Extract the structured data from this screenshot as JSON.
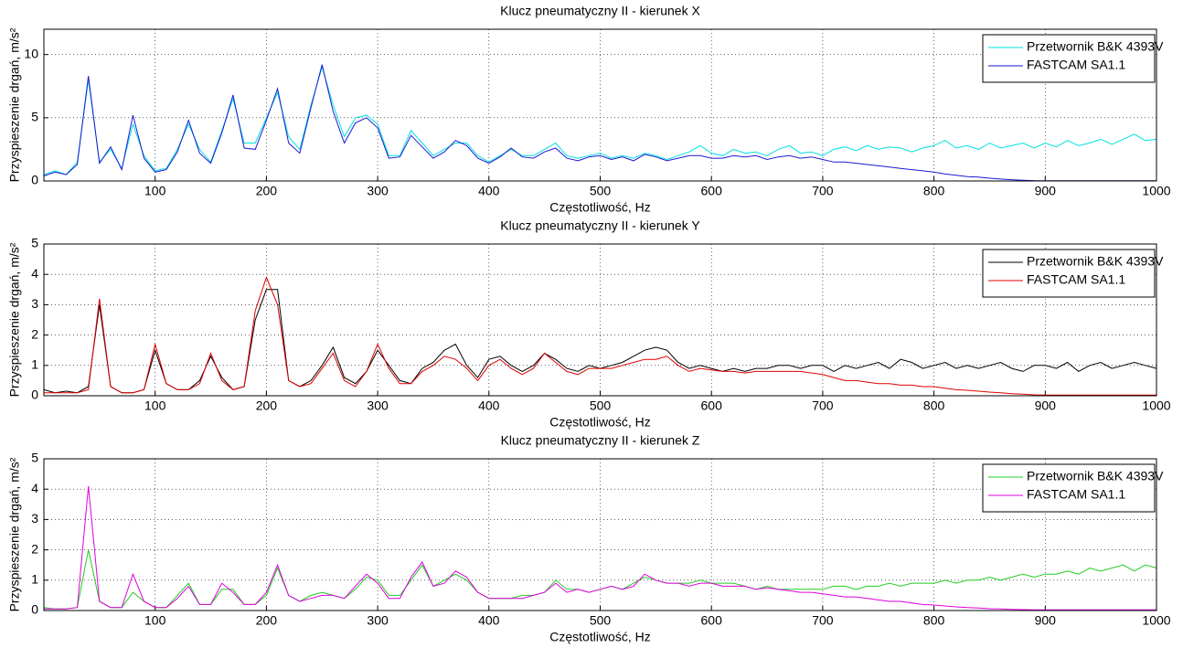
{
  "chart_data": [
    {
      "type": "line",
      "title": "Klucz pneumatyczny II - kierunek X",
      "xlabel": "Częstotliwość, Hz",
      "ylabel": "Przyspieszenie drgań, m/s²",
      "x": [
        0,
        10,
        20,
        30,
        40,
        50,
        60,
        70,
        80,
        90,
        100,
        110,
        120,
        130,
        140,
        150,
        160,
        170,
        180,
        190,
        200,
        210,
        220,
        230,
        240,
        250,
        260,
        270,
        280,
        290,
        300,
        310,
        320,
        330,
        340,
        350,
        360,
        370,
        380,
        390,
        400,
        410,
        420,
        430,
        440,
        450,
        460,
        470,
        480,
        490,
        500,
        510,
        520,
        530,
        540,
        550,
        560,
        570,
        580,
        590,
        600,
        610,
        620,
        630,
        640,
        650,
        660,
        670,
        680,
        690,
        700,
        710,
        720,
        730,
        740,
        750,
        760,
        770,
        780,
        790,
        800,
        810,
        820,
        830,
        840,
        850,
        860,
        870,
        880,
        890,
        900,
        910,
        920,
        930,
        940,
        950,
        960,
        970,
        980,
        990,
        1000
      ],
      "series": [
        {
          "name": "Przetwornik B&K 4393V",
          "color": "#00e0e0",
          "values": [
            0.5,
            0.8,
            0.5,
            1.5,
            8.0,
            1.5,
            2.5,
            1.0,
            4.5,
            2.0,
            0.8,
            1.0,
            2.5,
            4.5,
            2.5,
            1.5,
            4.0,
            6.5,
            3.0,
            3.0,
            5.0,
            7.0,
            3.5,
            2.5,
            6.0,
            9.0,
            6.0,
            3.5,
            5.0,
            5.2,
            4.5,
            2.0,
            2.0,
            4.0,
            3.0,
            2.0,
            2.5,
            3.0,
            3.0,
            2.0,
            1.5,
            2.0,
            2.5,
            2.0,
            2.0,
            2.5,
            3.0,
            2.0,
            1.8,
            2.0,
            2.2,
            1.8,
            2.0,
            1.8,
            2.2,
            2.0,
            1.7,
            2.0,
            2.3,
            2.8,
            2.2,
            2.0,
            2.5,
            2.2,
            2.3,
            2.0,
            2.5,
            2.8,
            2.2,
            2.3,
            2.0,
            2.5,
            2.7,
            2.4,
            2.8,
            2.5,
            2.7,
            2.6,
            2.3,
            2.6,
            2.8,
            3.2,
            2.6,
            2.8,
            2.5,
            3.0,
            2.6,
            2.8,
            3.0,
            2.6,
            3.0,
            2.7,
            3.2,
            2.8,
            3.0,
            3.3,
            2.9,
            3.3,
            3.7,
            3.2,
            3.3
          ]
        },
        {
          "name": "FASTCAM SA1.1",
          "color": "#1a1ad4",
          "values": [
            0.4,
            0.7,
            0.5,
            1.3,
            8.3,
            1.4,
            2.7,
            0.9,
            5.2,
            1.8,
            0.7,
            0.9,
            2.3,
            4.8,
            2.2,
            1.4,
            3.8,
            6.8,
            2.6,
            2.5,
            4.8,
            7.3,
            3.0,
            2.2,
            5.8,
            9.2,
            5.5,
            3.0,
            4.6,
            5.0,
            4.2,
            1.8,
            1.9,
            3.6,
            2.7,
            1.8,
            2.3,
            3.2,
            2.8,
            1.8,
            1.4,
            1.9,
            2.6,
            1.9,
            1.8,
            2.3,
            2.6,
            1.8,
            1.6,
            1.9,
            2.0,
            1.7,
            1.9,
            1.6,
            2.1,
            1.9,
            1.6,
            1.8,
            2.0,
            2.0,
            1.8,
            1.8,
            2.0,
            1.9,
            2.0,
            1.7,
            1.9,
            2.0,
            1.8,
            1.9,
            1.7,
            1.5,
            1.5,
            1.4,
            1.3,
            1.2,
            1.1,
            1.0,
            0.9,
            0.8,
            0.7,
            0.55,
            0.45,
            0.35,
            0.3,
            0.22,
            0.15,
            0.1,
            0.06,
            0.03,
            0.02,
            0.02,
            0.02,
            0.02,
            0.02,
            0.02,
            0.02,
            0.02,
            0.02,
            0.02,
            0.02
          ]
        }
      ],
      "xlim": [
        0,
        1000
      ],
      "xticks": [
        100,
        200,
        300,
        400,
        500,
        600,
        700,
        800,
        900,
        1000
      ],
      "ylim": [
        0,
        12
      ],
      "yticks": [
        0,
        5,
        10
      ],
      "grid": true,
      "legend": "upper right"
    },
    {
      "type": "line",
      "title": "Klucz pneumatyczny II - kierunek Y",
      "xlabel": "Częstotliwość, Hz",
      "ylabel": "Przyspieszenie drgań, m/s²",
      "x": [
        0,
        10,
        20,
        30,
        40,
        50,
        60,
        70,
        80,
        90,
        100,
        110,
        120,
        130,
        140,
        150,
        160,
        170,
        180,
        190,
        200,
        210,
        220,
        230,
        240,
        250,
        260,
        270,
        280,
        290,
        300,
        310,
        320,
        330,
        340,
        350,
        360,
        370,
        380,
        390,
        400,
        410,
        420,
        430,
        440,
        450,
        460,
        470,
        480,
        490,
        500,
        510,
        520,
        530,
        540,
        550,
        560,
        570,
        580,
        590,
        600,
        610,
        620,
        630,
        640,
        650,
        660,
        670,
        680,
        690,
        700,
        710,
        720,
        730,
        740,
        750,
        760,
        770,
        780,
        790,
        800,
        810,
        820,
        830,
        840,
        850,
        860,
        870,
        880,
        890,
        900,
        910,
        920,
        930,
        940,
        950,
        960,
        970,
        980,
        990,
        1000
      ],
      "series": [
        {
          "name": "Przetwornik B&K 4393V",
          "color": "#000000",
          "values": [
            0.2,
            0.1,
            0.15,
            0.1,
            0.3,
            3.0,
            0.3,
            0.1,
            0.1,
            0.2,
            1.5,
            0.4,
            0.2,
            0.2,
            0.5,
            1.3,
            0.6,
            0.2,
            0.3,
            2.5,
            3.5,
            3.5,
            0.5,
            0.3,
            0.5,
            1.0,
            1.6,
            0.6,
            0.4,
            0.8,
            1.5,
            1.0,
            0.5,
            0.4,
            0.9,
            1.1,
            1.5,
            1.7,
            1.0,
            0.6,
            1.2,
            1.3,
            1.0,
            0.8,
            1.0,
            1.4,
            1.2,
            0.9,
            0.8,
            1.0,
            0.9,
            1.0,
            1.1,
            1.3,
            1.5,
            1.6,
            1.5,
            1.1,
            0.9,
            1.0,
            0.9,
            0.8,
            0.9,
            0.8,
            0.9,
            0.9,
            1.0,
            1.0,
            0.9,
            1.0,
            1.0,
            0.8,
            1.0,
            0.9,
            1.0,
            1.1,
            0.9,
            1.2,
            1.1,
            0.9,
            1.0,
            1.1,
            0.9,
            1.0,
            0.9,
            1.0,
            1.1,
            0.9,
            0.8,
            1.0,
            1.0,
            0.9,
            1.1,
            0.8,
            1.0,
            1.1,
            0.9,
            1.0,
            1.1,
            1.0,
            0.9
          ]
        },
        {
          "name": "FASTCAM SA1.1",
          "color": "#e00000",
          "values": [
            0.1,
            0.1,
            0.1,
            0.1,
            0.2,
            3.2,
            0.3,
            0.1,
            0.1,
            0.2,
            1.7,
            0.4,
            0.2,
            0.2,
            0.4,
            1.4,
            0.5,
            0.2,
            0.3,
            2.8,
            3.9,
            3.0,
            0.5,
            0.3,
            0.4,
            0.9,
            1.4,
            0.5,
            0.3,
            0.8,
            1.7,
            0.9,
            0.4,
            0.4,
            0.8,
            1.0,
            1.3,
            1.2,
            0.9,
            0.5,
            1.0,
            1.2,
            0.9,
            0.7,
            0.9,
            1.4,
            1.1,
            0.8,
            0.7,
            0.9,
            0.9,
            0.9,
            1.0,
            1.1,
            1.2,
            1.2,
            1.3,
            1.0,
            0.8,
            0.9,
            0.85,
            0.8,
            0.8,
            0.75,
            0.8,
            0.8,
            0.8,
            0.8,
            0.8,
            0.75,
            0.7,
            0.6,
            0.5,
            0.5,
            0.45,
            0.4,
            0.4,
            0.35,
            0.35,
            0.3,
            0.3,
            0.25,
            0.2,
            0.18,
            0.15,
            0.12,
            0.1,
            0.07,
            0.05,
            0.03,
            0.02,
            0.02,
            0.02,
            0.02,
            0.02,
            0.02,
            0.02,
            0.02,
            0.02,
            0.02,
            0.02
          ]
        }
      ],
      "xlim": [
        0,
        1000
      ],
      "xticks": [
        100,
        200,
        300,
        400,
        500,
        600,
        700,
        800,
        900,
        1000
      ],
      "ylim": [
        0,
        5
      ],
      "yticks": [
        0,
        1,
        2,
        3,
        4,
        5
      ],
      "grid": true,
      "legend": "upper right"
    },
    {
      "type": "line",
      "title": "Klucz pneumatyczny II - kierunek Z",
      "xlabel": "Częstotliwość, Hz",
      "ylabel": "Przyspieszenie drgań, m/s²",
      "x": [
        0,
        10,
        20,
        30,
        40,
        50,
        60,
        70,
        80,
        90,
        100,
        110,
        120,
        130,
        140,
        150,
        160,
        170,
        180,
        190,
        200,
        210,
        220,
        230,
        240,
        250,
        260,
        270,
        280,
        290,
        300,
        310,
        320,
        330,
        340,
        350,
        360,
        370,
        380,
        390,
        400,
        410,
        420,
        430,
        440,
        450,
        460,
        470,
        480,
        490,
        500,
        510,
        520,
        530,
        540,
        550,
        560,
        570,
        580,
        590,
        600,
        610,
        620,
        630,
        640,
        650,
        660,
        670,
        680,
        690,
        700,
        710,
        720,
        730,
        740,
        750,
        760,
        770,
        780,
        790,
        800,
        810,
        820,
        830,
        840,
        850,
        860,
        870,
        880,
        890,
        900,
        910,
        920,
        930,
        940,
        950,
        960,
        970,
        980,
        990,
        1000
      ],
      "series": [
        {
          "name": "Przetwornik B&K 4393V",
          "color": "#22cc22",
          "values": [
            0.1,
            0.05,
            0.05,
            0.1,
            2.0,
            0.3,
            0.1,
            0.1,
            0.6,
            0.3,
            0.1,
            0.1,
            0.5,
            0.9,
            0.2,
            0.2,
            0.7,
            0.7,
            0.2,
            0.2,
            0.5,
            1.4,
            0.5,
            0.3,
            0.5,
            0.6,
            0.5,
            0.4,
            0.7,
            1.1,
            1.0,
            0.5,
            0.5,
            1.0,
            1.5,
            0.8,
            1.0,
            1.2,
            1.0,
            0.6,
            0.4,
            0.4,
            0.4,
            0.5,
            0.5,
            0.6,
            1.0,
            0.7,
            0.7,
            0.6,
            0.7,
            0.8,
            0.7,
            0.9,
            1.1,
            1.0,
            0.9,
            0.9,
            0.9,
            1.0,
            0.9,
            0.9,
            0.9,
            0.8,
            0.7,
            0.8,
            0.7,
            0.7,
            0.7,
            0.7,
            0.7,
            0.8,
            0.8,
            0.7,
            0.8,
            0.8,
            0.9,
            0.8,
            0.9,
            0.9,
            0.9,
            1.0,
            0.9,
            1.0,
            1.0,
            1.1,
            1.0,
            1.1,
            1.2,
            1.1,
            1.2,
            1.2,
            1.3,
            1.2,
            1.4,
            1.3,
            1.4,
            1.5,
            1.3,
            1.5,
            1.4
          ]
        },
        {
          "name": "FASTCAM SA1.1",
          "color": "#e000e0",
          "values": [
            0.05,
            0.05,
            0.05,
            0.1,
            4.1,
            0.3,
            0.1,
            0.1,
            1.2,
            0.3,
            0.1,
            0.1,
            0.4,
            0.8,
            0.2,
            0.2,
            0.9,
            0.6,
            0.2,
            0.2,
            0.6,
            1.5,
            0.5,
            0.3,
            0.4,
            0.5,
            0.5,
            0.4,
            0.8,
            1.2,
            0.9,
            0.4,
            0.4,
            1.1,
            1.6,
            0.8,
            0.9,
            1.3,
            1.1,
            0.6,
            0.4,
            0.4,
            0.4,
            0.4,
            0.5,
            0.6,
            0.9,
            0.6,
            0.7,
            0.6,
            0.7,
            0.8,
            0.7,
            0.8,
            1.2,
            1.0,
            0.9,
            0.9,
            0.8,
            0.9,
            0.9,
            0.8,
            0.8,
            0.8,
            0.7,
            0.75,
            0.7,
            0.65,
            0.6,
            0.6,
            0.55,
            0.5,
            0.45,
            0.45,
            0.4,
            0.35,
            0.3,
            0.3,
            0.25,
            0.2,
            0.18,
            0.15,
            0.12,
            0.1,
            0.08,
            0.06,
            0.05,
            0.04,
            0.03,
            0.02,
            0.02,
            0.02,
            0.02,
            0.02,
            0.02,
            0.02,
            0.02,
            0.02,
            0.02,
            0.02,
            0.02
          ]
        }
      ],
      "xlim": [
        0,
        1000
      ],
      "xticks": [
        100,
        200,
        300,
        400,
        500,
        600,
        700,
        800,
        900,
        1000
      ],
      "ylim": [
        0,
        5
      ],
      "yticks": [
        0,
        1,
        2,
        3,
        4,
        5
      ],
      "grid": true,
      "legend": "upper right"
    }
  ]
}
